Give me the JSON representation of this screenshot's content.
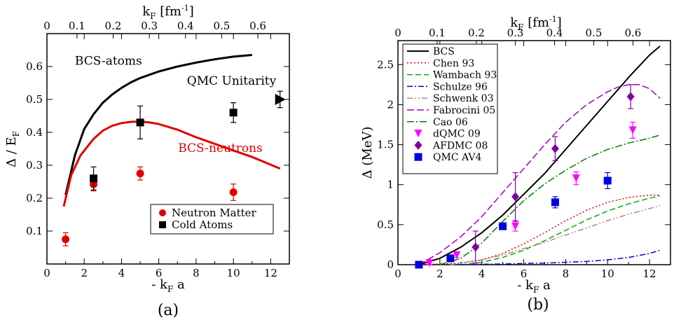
{
  "chart_data": [
    {
      "id": "a",
      "type": "scatter",
      "caption": "(a)",
      "xlabel": "- k_F a",
      "ylabel": "Δ / E_F",
      "top_xlabel": "k_F [fm^-1]",
      "xlim": [
        0,
        13
      ],
      "ylim": [
        0,
        0.7
      ],
      "xticks": [
        0,
        2,
        4,
        6,
        8,
        10,
        12
      ],
      "yticks": [
        0.1,
        0.2,
        0.3,
        0.4,
        0.5,
        0.6
      ],
      "top_ticks": [
        {
          "label": "0.1",
          "x": 1.61
        },
        {
          "label": "0.2",
          "x": 3.55
        },
        {
          "label": "0.3",
          "x": 5.49
        },
        {
          "label": "0.4",
          "x": 7.43
        },
        {
          "label": "0.5",
          "x": 9.37
        },
        {
          "label": "0.6",
          "x": 11.31
        }
      ],
      "grid": false,
      "legend_position": "bottom-right",
      "annotations": [
        {
          "text": "BCS-atoms",
          "x": 3.3,
          "y": 0.605,
          "color": "#000000"
        },
        {
          "text": "QMC Unitarity",
          "x": 9.9,
          "y": 0.545,
          "color": "#000000"
        },
        {
          "text": "BCS-neutrons",
          "x": 9.3,
          "y": 0.34,
          "color": "#e00000"
        }
      ],
      "series": [
        {
          "name": "",
          "kind": "line",
          "color": "#000000",
          "width": 3,
          "x": [
            1.0,
            1.5,
            2.0,
            2.5,
            3.0,
            3.5,
            4.0,
            4.5,
            5.0,
            6.0,
            7.0,
            8.0,
            9.0,
            10.0,
            11.0
          ],
          "y": [
            0.21,
            0.33,
            0.41,
            0.455,
            0.49,
            0.515,
            0.535,
            0.552,
            0.565,
            0.585,
            0.6,
            0.612,
            0.622,
            0.63,
            0.635
          ]
        },
        {
          "name": "",
          "kind": "line",
          "color": "#e00000",
          "width": 3,
          "x": [
            0.9,
            1.3,
            1.8,
            2.5,
            3.0,
            3.5,
            4.0,
            4.5,
            5.0,
            5.5,
            6.0,
            7.0,
            8.0,
            9.0,
            10.0,
            11.0,
            12.5
          ],
          "y": [
            0.175,
            0.27,
            0.33,
            0.38,
            0.405,
            0.42,
            0.428,
            0.432,
            0.433,
            0.43,
            0.425,
            0.408,
            0.385,
            0.365,
            0.345,
            0.325,
            0.29
          ]
        },
        {
          "name": "Neutron Matter",
          "kind": "marker",
          "marker": "circle",
          "color": "#e00000",
          "x": [
            1.0,
            2.5,
            5.0,
            10.0
          ],
          "y": [
            0.075,
            0.242,
            0.275,
            0.218
          ],
          "yerr": [
            0.02,
            0.02,
            0.02,
            0.025
          ]
        },
        {
          "name": "Cold Atoms",
          "kind": "marker",
          "marker": "square",
          "color": "#000000",
          "x": [
            2.5,
            5.0,
            10.0
          ],
          "y": [
            0.26,
            0.43,
            0.46
          ],
          "yerr": [
            0.035,
            0.05,
            0.03
          ]
        },
        {
          "name": "",
          "kind": "marker",
          "marker": "triangle-right",
          "color": "#000000",
          "x": [
            12.5
          ],
          "y": [
            0.5
          ],
          "yerr": [
            0.025
          ]
        }
      ]
    },
    {
      "id": "b",
      "type": "line",
      "caption": "(b)",
      "xlabel": "- k_F a",
      "ylabel": "Δ (MeV)",
      "top_xlabel": "k_F [fm^-1]",
      "xlim": [
        0,
        13
      ],
      "ylim": [
        0,
        2.8
      ],
      "xticks": [
        0,
        2,
        4,
        6,
        8,
        10,
        12
      ],
      "yticks": [
        0,
        0.5,
        1,
        1.5,
        2,
        2.5
      ],
      "ytick_labels": [
        "0",
        "0.5",
        "1",
        "1.5",
        "2",
        "2.5"
      ],
      "top_ticks": [
        {
          "label": "0.1",
          "x": 1.87
        },
        {
          "label": "0.2",
          "x": 3.74
        },
        {
          "label": "0.3",
          "x": 5.6
        },
        {
          "label": "0.4",
          "x": 7.47
        },
        {
          "label": "0.5",
          "x": 9.34
        },
        {
          "label": "0.6",
          "x": 11.21
        }
      ],
      "grid": false,
      "legend_position": "top-left",
      "series": [
        {
          "name": "BCS",
          "kind": "line",
          "color": "#000000",
          "width": 2,
          "dash": "",
          "x": [
            1,
            2,
            3,
            4,
            5,
            6,
            7,
            8,
            9,
            10,
            11,
            12,
            12.5
          ],
          "y": [
            0.0,
            0.08,
            0.22,
            0.4,
            0.62,
            0.88,
            1.14,
            1.44,
            1.74,
            2.04,
            2.34,
            2.62,
            2.73
          ]
        },
        {
          "name": "Chen 93",
          "kind": "line",
          "color": "#e00000",
          "width": 1.5,
          "dash": "2,3",
          "x": [
            1,
            3,
            4,
            5,
            6,
            7,
            8,
            9,
            10,
            11,
            12,
            12.5
          ],
          "y": [
            0.0,
            0.02,
            0.06,
            0.14,
            0.26,
            0.4,
            0.55,
            0.68,
            0.78,
            0.84,
            0.87,
            0.87
          ]
        },
        {
          "name": "Wambach 93",
          "kind": "line",
          "color": "#00b000",
          "width": 1.5,
          "dash": "8,4",
          "x": [
            3,
            4,
            5,
            6,
            7,
            8,
            9,
            10,
            11,
            12,
            12.5
          ],
          "y": [
            0.0,
            0.03,
            0.09,
            0.18,
            0.3,
            0.43,
            0.56,
            0.67,
            0.76,
            0.83,
            0.86
          ]
        },
        {
          "name": "Schulze 96",
          "kind": "line",
          "color": "#0000e0",
          "width": 1.5,
          "dash": "8,3,2,3",
          "x": [
            3,
            5,
            7,
            9,
            10,
            11,
            12,
            12.5
          ],
          "y": [
            0.0,
            0.01,
            0.02,
            0.04,
            0.06,
            0.09,
            0.14,
            0.18
          ]
        },
        {
          "name": "Schwenk 03",
          "kind": "line",
          "color": "#c08080",
          "width": 1.5,
          "dash": "8,3,2,3,2,3",
          "x": [
            2.5,
            4,
            5,
            6,
            7,
            8,
            9,
            10,
            11,
            12,
            12.5
          ],
          "y": [
            0.0,
            0.06,
            0.12,
            0.2,
            0.28,
            0.37,
            0.46,
            0.55,
            0.63,
            0.7,
            0.74
          ]
        },
        {
          "name": "Fabrocini 05",
          "kind": "line",
          "color": "#a000c0",
          "width": 1.5,
          "dash": "10,4",
          "x": [
            1,
            2,
            3,
            4,
            5,
            6,
            7,
            8,
            9,
            10,
            10.5,
            11,
            11.5,
            12,
            12.5
          ],
          "y": [
            0.0,
            0.15,
            0.35,
            0.6,
            0.9,
            1.2,
            1.5,
            1.78,
            2.0,
            2.16,
            2.22,
            2.25,
            2.25,
            2.2,
            2.08
          ]
        },
        {
          "name": "Cao 06",
          "kind": "line",
          "color": "#008000",
          "width": 1.5,
          "dash": "10,3,2,3",
          "x": [
            2,
            3,
            4,
            5,
            6,
            7,
            8,
            9,
            10,
            11,
            12,
            12.5
          ],
          "y": [
            0.0,
            0.08,
            0.27,
            0.54,
            0.8,
            1.01,
            1.18,
            1.33,
            1.44,
            1.52,
            1.58,
            1.62
          ]
        },
        {
          "name": "dQMC 09",
          "kind": "marker",
          "marker": "triangle-down",
          "color": "#ff00ff",
          "x": [
            1.5,
            2.8,
            5.6,
            8.5,
            11.2
          ],
          "y": [
            0.02,
            0.12,
            0.48,
            1.08,
            1.68
          ],
          "yerr": [
            0.02,
            0.03,
            0.06,
            0.08,
            0.1
          ]
        },
        {
          "name": "AFDMC 08",
          "kind": "marker",
          "marker": "diamond",
          "color": "#8000a0",
          "x": [
            3.7,
            5.6,
            7.5,
            11.1
          ],
          "y": [
            0.22,
            0.85,
            1.45,
            2.1
          ],
          "yerr": [
            0.2,
            0.3,
            0.15,
            0.15
          ]
        },
        {
          "name": "QMC AV4",
          "kind": "marker",
          "marker": "square",
          "color": "#0000e0",
          "x": [
            1.0,
            2.5,
            5.0,
            7.5,
            10.0
          ],
          "y": [
            0.0,
            0.08,
            0.48,
            0.78,
            1.05
          ],
          "yerr": [
            0.0,
            0.02,
            0.04,
            0.07,
            0.1
          ]
        }
      ]
    }
  ]
}
